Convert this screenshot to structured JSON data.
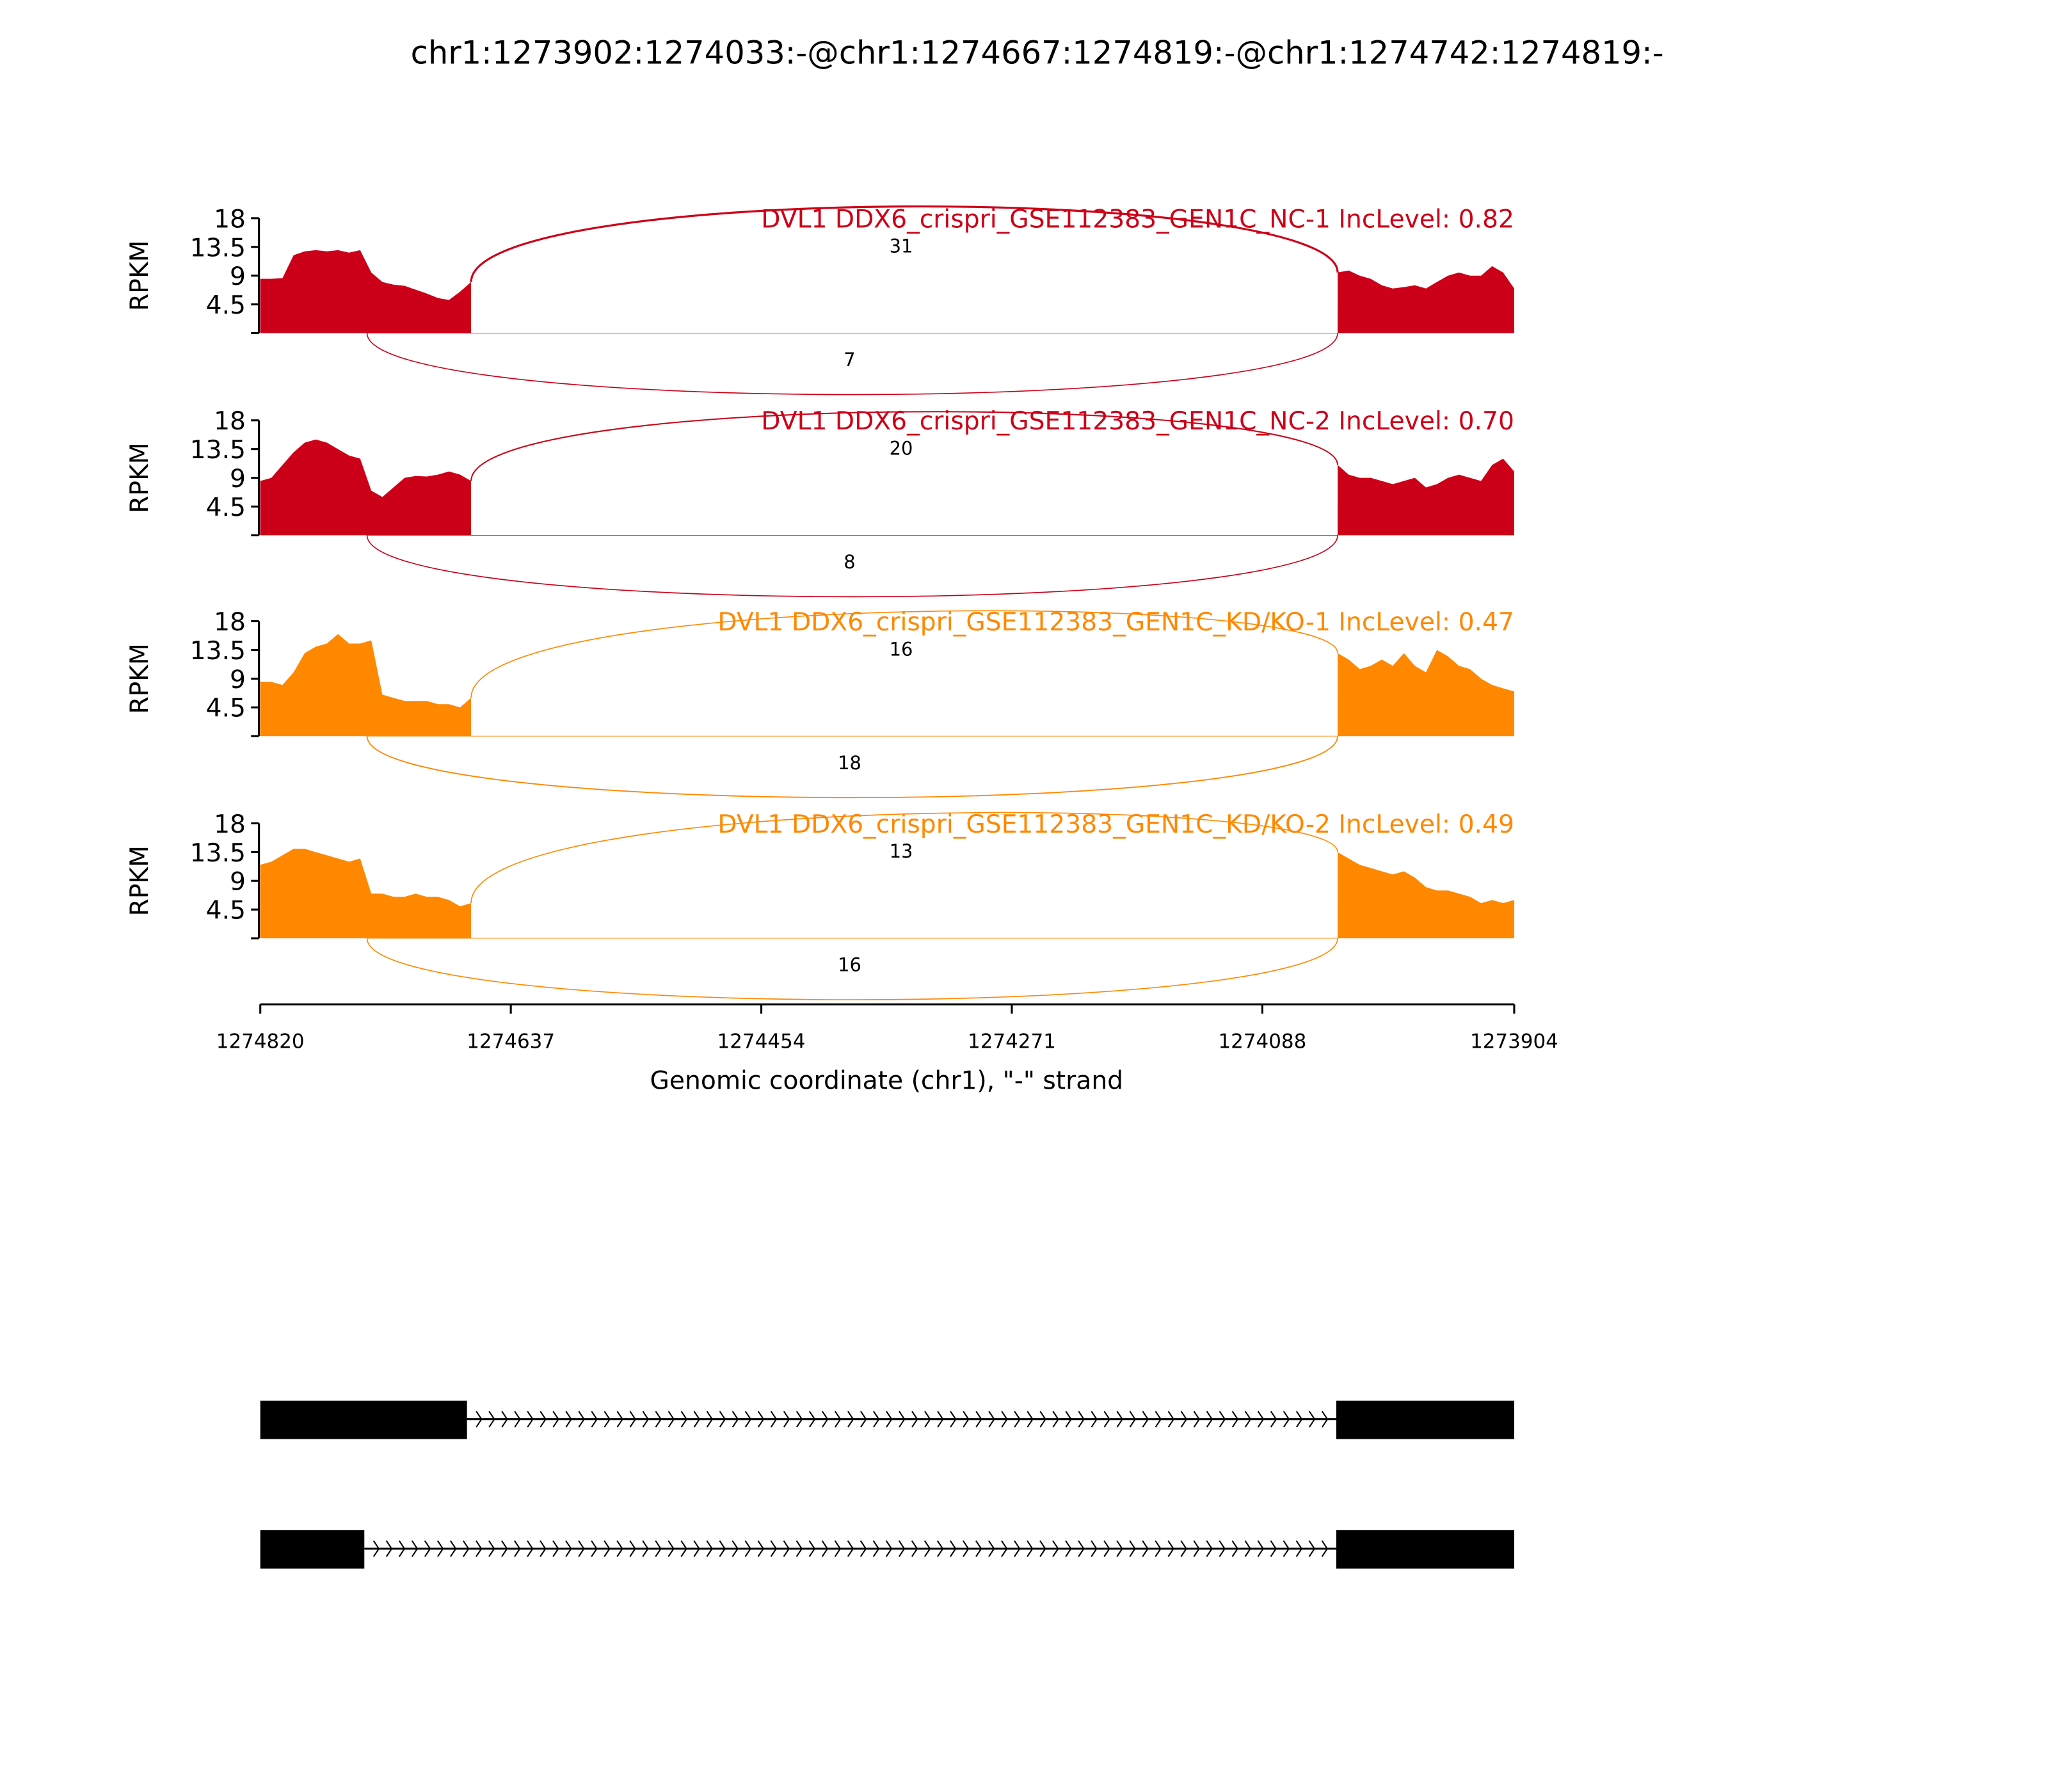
{
  "chart_data": {
    "type": "area",
    "title": "chr1:1273902:1274033:-@chr1:1274667:1274819:-@chr1:1274742:1274819:-",
    "xlabel": "Genomic coordinate (chr1), \"-\" strand",
    "ylabel": "RPKM",
    "xlim": [
      1274820,
      1273904
    ],
    "xticks": [
      "1274820",
      "1274637",
      "1274454",
      "1274271",
      "1274088",
      "1273904"
    ],
    "xtick_values": [
      1274820,
      1274637,
      1274454,
      1274271,
      1274088,
      1273904
    ],
    "ylim": [
      0,
      18
    ],
    "yticks": [
      "18",
      "13.5",
      "9",
      "4.5"
    ],
    "ytick_values": [
      18,
      13.5,
      9,
      4.5
    ],
    "colors": {
      "NC": "#cc0018",
      "KD": "#ff8800"
    },
    "exon_regions": [
      {
        "start": 1274820,
        "end": 1274666
      },
      {
        "start": 1274033,
        "end": 1273904
      }
    ],
    "series": [
      {
        "name": "DVL1 DDX6_crispri_GSE112383_GEN1C_NC-1 IncLevel: 0.82",
        "color": "#cc0018",
        "inclusion_junction_count": "31",
        "exclusion_junction_count": "7",
        "coverage_left": [
          8.5,
          8.5,
          8.6,
          12.2,
          12.8,
          13,
          12.8,
          13,
          12.6,
          13,
          9.5,
          8,
          7.6,
          7.4,
          6.8,
          6.2,
          5.5,
          5.2,
          6.5,
          8
        ],
        "coverage_right": [
          9.5,
          9.8,
          9,
          8.5,
          7.5,
          7,
          7.2,
          7.5,
          7,
          8,
          9,
          9.5,
          9,
          9,
          10.5,
          9.5,
          7
        ]
      },
      {
        "name": "DVL1 DDX6_crispri_GSE112383_GEN1C_NC-2 IncLevel: 0.70",
        "color": "#cc0018",
        "inclusion_junction_count": "20",
        "exclusion_junction_count": "8",
        "coverage_left": [
          8.5,
          9,
          11,
          13,
          14.5,
          15,
          14.5,
          13.5,
          12.5,
          12,
          7,
          6,
          7.5,
          9,
          9.3,
          9.2,
          9.5,
          10,
          9.5,
          8.5
        ],
        "coverage_right": [
          11,
          9.5,
          9,
          9,
          8.5,
          8,
          8.5,
          9,
          7.5,
          8,
          9,
          9.5,
          9,
          8.5,
          11,
          12,
          10
        ]
      },
      {
        "name": "DVL1 DDX6_crispri_GSE112383_GEN1C_KD/KO-1 IncLevel: 0.47",
        "color": "#ff8800",
        "inclusion_junction_count": "16",
        "exclusion_junction_count": "18",
        "coverage_left": [
          8.5,
          8.5,
          8,
          10,
          13,
          14,
          14.5,
          16,
          14.5,
          14.5,
          15,
          6.5,
          6,
          5.5,
          5.5,
          5.5,
          5,
          5,
          4.5,
          6
        ],
        "coverage_right": [
          13,
          12,
          10.5,
          11,
          12,
          11,
          13,
          11,
          10,
          13.5,
          12.5,
          11,
          10.5,
          9,
          8,
          7.5,
          7
        ]
      },
      {
        "name": "DVL1 DDX6_crispri_GSE112383_GEN1C_KD/KO-2 IncLevel: 0.49",
        "color": "#ff8800",
        "inclusion_junction_count": "13",
        "exclusion_junction_count": "16",
        "coverage_left": [
          11.5,
          12,
          13,
          14,
          14,
          13.5,
          13,
          12.5,
          12,
          12.5,
          7,
          7,
          6.5,
          6.5,
          7,
          6.5,
          6.5,
          6,
          5,
          5.5
        ],
        "coverage_right": [
          13.5,
          12.5,
          11.5,
          11,
          10.5,
          10,
          10.5,
          9.5,
          8,
          7.5,
          7.5,
          7,
          6.5,
          5.5,
          6,
          5.5,
          6
        ]
      }
    ],
    "inclusion_junction": {
      "from": 1274666,
      "to": 1274033
    },
    "exclusion_junction": {
      "from": 1274742,
      "to": 1274033
    },
    "transcripts": [
      {
        "exons": [
          [
            1274820,
            1274669
          ],
          [
            1274034,
            1273904
          ]
        ]
      },
      {
        "exons": [
          [
            1274820,
            1274744
          ],
          [
            1274034,
            1273904
          ]
        ]
      }
    ]
  }
}
